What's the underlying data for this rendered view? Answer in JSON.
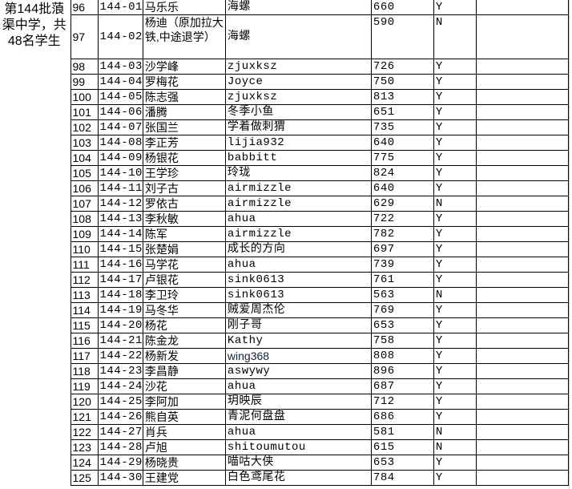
{
  "group_label": "第144批蒗渠中学，共48名学生",
  "rows": [
    {
      "no": "96",
      "code": "144-01",
      "name": "马乐乐",
      "nick": "海螺",
      "score": "660",
      "flag": "Y"
    },
    {
      "no": "97",
      "code": "144-02",
      "name": "杨迪（原加拉大铁,中途退学）",
      "nick": "海螺",
      "score": "590",
      "flag": "N"
    },
    {
      "no": "98",
      "code": "144-03",
      "name": "沙学峰",
      "nick": "zjuxksz",
      "score": "726",
      "flag": "Y"
    },
    {
      "no": "99",
      "code": "144-04",
      "name": "罗梅花",
      "nick": "Joyce",
      "score": "750",
      "flag": "Y"
    },
    {
      "no": "100",
      "code": "144-05",
      "name": "陈志强",
      "nick": "zjuxksz",
      "score": "813",
      "flag": "Y"
    },
    {
      "no": "101",
      "code": "144-06",
      "name": "潘腾",
      "nick": "冬季小鱼",
      "score": "651",
      "flag": "Y"
    },
    {
      "no": "102",
      "code": "144-07",
      "name": "张国兰",
      "nick": "学着做刺猬",
      "score": "735",
      "flag": "Y"
    },
    {
      "no": "103",
      "code": "144-08",
      "name": "李正芳",
      "nick": "lijia932",
      "score": "640",
      "flag": "Y"
    },
    {
      "no": "104",
      "code": "144-09",
      "name": "杨银花",
      "nick": "babbitt",
      "score": "775",
      "flag": "Y"
    },
    {
      "no": "105",
      "code": "144-10",
      "name": "王学珍",
      "nick": "玲珑",
      "score": "824",
      "flag": "Y"
    },
    {
      "no": "106",
      "code": "144-11",
      "name": "刘子古",
      "nick": "airmizzle",
      "score": "640",
      "flag": "Y"
    },
    {
      "no": "107",
      "code": "144-12",
      "name": "罗依古",
      "nick": "airmizzle",
      "score": "629",
      "flag": "N"
    },
    {
      "no": "108",
      "code": "144-13",
      "name": "李秋敏",
      "nick": "ahua",
      "score": "722",
      "flag": "Y"
    },
    {
      "no": "109",
      "code": "144-14",
      "name": "陈军",
      "nick": "airmizzle",
      "score": "782",
      "flag": "Y"
    },
    {
      "no": "110",
      "code": "144-15",
      "name": "张楚娟",
      "nick": "成长的方向",
      "score": "697",
      "flag": "Y"
    },
    {
      "no": "111",
      "code": "144-16",
      "name": "马学花",
      "nick": "ahua",
      "score": "739",
      "flag": "Y"
    },
    {
      "no": "112",
      "code": "144-17",
      "name": "卢银花",
      "nick": "sink0613",
      "score": "761",
      "flag": "Y"
    },
    {
      "no": "113",
      "code": "144-18",
      "name": "李卫玲",
      "nick": "sink0613",
      "score": "563",
      "flag": "N"
    },
    {
      "no": "114",
      "code": "144-19",
      "name": "马冬华",
      "nick": "贼爱周杰伦",
      "score": "769",
      "flag": "Y"
    },
    {
      "no": "115",
      "code": "144-20",
      "name": "杨花",
      "nick": "刚子哥",
      "score": "653",
      "flag": "Y"
    },
    {
      "no": "116",
      "code": "144-21",
      "name": "陈金龙",
      "nick": "Kathy",
      "score": "758",
      "flag": "Y"
    },
    {
      "no": "117",
      "code": "144-22",
      "name": "杨新发",
      "nick": "wing368",
      "score": "808",
      "flag": "Y",
      "sans": true
    },
    {
      "no": "118",
      "code": "144-23",
      "name": "李昌静",
      "nick": "aswywy",
      "score": "896",
      "flag": "Y"
    },
    {
      "no": "119",
      "code": "144-24",
      "name": "沙花",
      "nick": "ahua",
      "score": "687",
      "flag": "Y"
    },
    {
      "no": "120",
      "code": "144-25",
      "name": "李阿加",
      "nick": "玥映辰",
      "score": "712",
      "flag": "Y"
    },
    {
      "no": "121",
      "code": "144-26",
      "name": "熊自英",
      "nick": "青泥何盘盘",
      "score": "686",
      "flag": "Y"
    },
    {
      "no": "122",
      "code": "144-27",
      "name": "肖兵",
      "nick": "ahua",
      "score": "581",
      "flag": "N"
    },
    {
      "no": "123",
      "code": "144-28",
      "name": "卢旭",
      "nick": "shitoumutou",
      "score": "615",
      "flag": "N"
    },
    {
      "no": "124",
      "code": "144-29",
      "name": "杨晓贵",
      "nick": "喵咕大侠",
      "score": "653",
      "flag": "Y"
    },
    {
      "no": "125",
      "code": "144-30",
      "name": "王建党",
      "nick": "白色鸢尾花",
      "score": "784",
      "flag": "Y"
    }
  ]
}
